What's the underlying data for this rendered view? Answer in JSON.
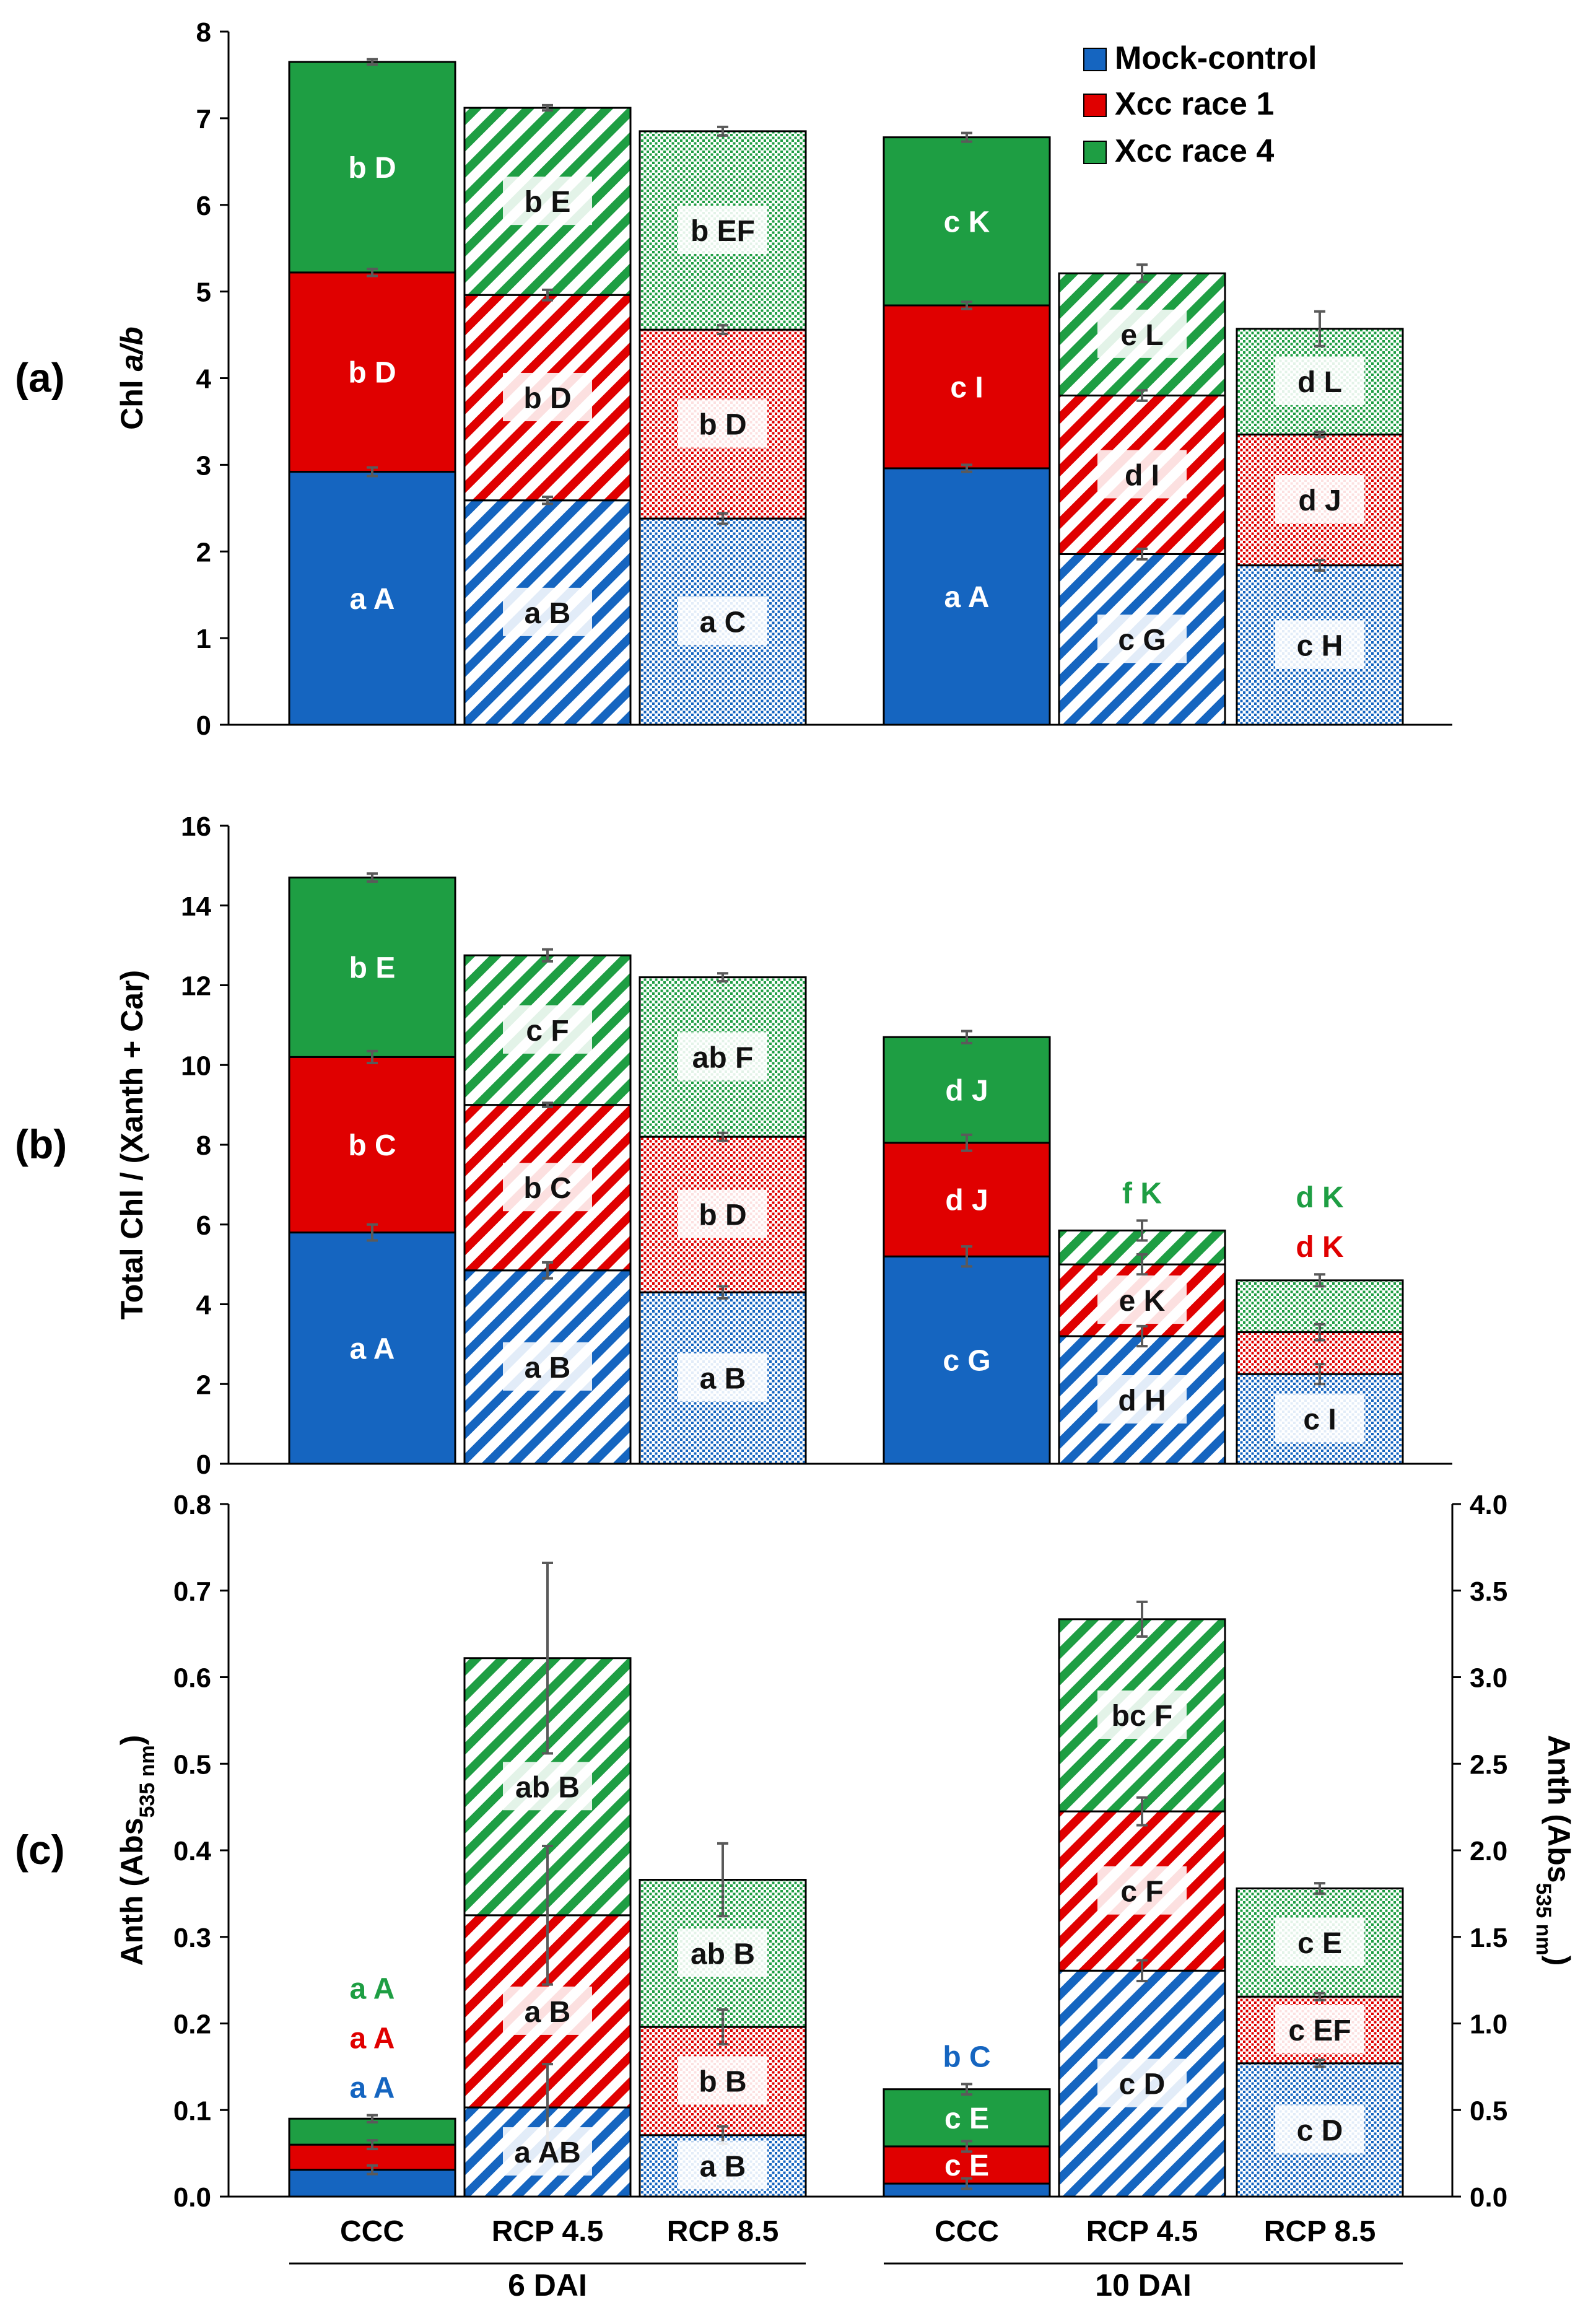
{
  "colors": {
    "mock": "#1565c0",
    "race1": "#e00000",
    "race4": "#1e9e43",
    "axis": "#000000",
    "error": "#5a5a5a"
  },
  "legend": [
    "Mock-control",
    "Xcc race 1",
    "Xcc race 4"
  ],
  "categories": [
    "CCC",
    "RCP 4.5",
    "RCP 8.5",
    "CCC",
    "RCP 4.5",
    "RCP 8.5"
  ],
  "groups": [
    "6 DAI",
    "10 DAI"
  ],
  "chart_data": [
    {
      "type": "bar",
      "stacked": true,
      "panel": "(a)",
      "ylabel_main": "Chl ",
      "ylabel_italic": "a/b",
      "ylim": [
        0,
        8
      ],
      "yticks": [
        "0",
        "1",
        "2",
        "3",
        "4",
        "5",
        "6",
        "7",
        "8"
      ],
      "series": [
        {
          "name": "Mock-control",
          "values": [
            2.92,
            2.59,
            2.38,
            2.96,
            1.97,
            1.84
          ],
          "err": [
            0.05,
            0.04,
            0.06,
            0.04,
            0.06,
            0.06
          ],
          "labels": [
            "a A",
            "a B",
            "a C",
            "a A",
            "c G",
            "c H"
          ]
        },
        {
          "name": "Xcc race 1",
          "values": [
            2.3,
            2.37,
            2.18,
            1.88,
            1.83,
            1.51
          ],
          "err": [
            0.04,
            0.06,
            0.05,
            0.04,
            0.06,
            0.03
          ],
          "labels": [
            "b D",
            "b D",
            "b D",
            "c I",
            "d I",
            "d J"
          ]
        },
        {
          "name": "Xcc race 4",
          "values": [
            2.43,
            2.16,
            2.29,
            1.94,
            1.41,
            1.22
          ],
          "err": [
            0.03,
            0.03,
            0.05,
            0.05,
            0.1,
            0.2
          ],
          "labels": [
            "b D",
            "b E",
            "b EF",
            "c K",
            "e L",
            "d L"
          ]
        }
      ]
    },
    {
      "type": "bar",
      "stacked": true,
      "panel": "(b)",
      "ylabel_main": "Total Chl / (Xanth + Car)",
      "ylim": [
        0,
        16
      ],
      "yticks": [
        "0",
        "2",
        "4",
        "6",
        "8",
        "10",
        "12",
        "14",
        "16"
      ],
      "series": [
        {
          "name": "Mock-control",
          "values": [
            5.8,
            4.85,
            4.3,
            5.2,
            3.2,
            2.25
          ],
          "err": [
            0.2,
            0.2,
            0.15,
            0.25,
            0.25,
            0.25
          ],
          "labels": [
            "a A",
            "a B",
            "a B",
            "c G",
            "d H",
            "c I"
          ]
        },
        {
          "name": "Xcc race 1",
          "values": [
            4.4,
            4.15,
            3.9,
            2.85,
            1.8,
            1.05
          ],
          "err": [
            0.15,
            0.05,
            0.1,
            0.2,
            0.25,
            0.2
          ],
          "labels": [
            "b C",
            "b C",
            "b D",
            "d J",
            "e K",
            ""
          ]
        },
        {
          "name": "Xcc race 4",
          "values": [
            4.5,
            3.75,
            4.0,
            2.65,
            0.85,
            1.3
          ],
          "err": [
            0.1,
            0.15,
            0.1,
            0.15,
            0.25,
            0.15
          ],
          "labels": [
            "b E",
            "c F",
            "ab F",
            "d J",
            "",
            ""
          ]
        }
      ],
      "annotations": [
        {
          "bar": 4,
          "lines": [
            {
              "text": "f K",
              "series": "Xcc race 4"
            }
          ]
        },
        {
          "bar": 5,
          "lines": [
            {
              "text": "d K",
              "series": "Xcc race 4"
            },
            {
              "text": "d K",
              "series": "Xcc race 1"
            }
          ]
        }
      ]
    },
    {
      "type": "bar",
      "stacked": true,
      "panel": "(c)",
      "ylabel_main": "Anth (Abs",
      "ylabel_sub": "535 nm",
      "ylabel_close": ")",
      "ylim": [
        0,
        0.8
      ],
      "yticks": [
        "0.0",
        "0.1",
        "0.2",
        "0.3",
        "0.4",
        "0.5",
        "0.6",
        "0.7",
        "0.8"
      ],
      "ylim_right": [
        0,
        4.0
      ],
      "yticks_right": [
        "0.0",
        "0.5",
        "1.0",
        "1.5",
        "2.0",
        "2.5",
        "3.0",
        "3.5",
        "4.0"
      ],
      "note": "6 DAI bars use left axis; 10 DAI bars use right axis",
      "series": [
        {
          "name": "Mock-control",
          "values": [
            0.031,
            0.103,
            0.071,
            0.075,
            1.305,
            0.77
          ],
          "err": [
            0.005,
            0.05,
            0.01,
            0.03,
            0.06,
            0.02
          ],
          "labels": [
            "",
            "a AB",
            "a B",
            "",
            "c D",
            "c D"
          ]
        },
        {
          "name": "Xcc race 1",
          "values": [
            0.029,
            0.222,
            0.125,
            0.215,
            0.92,
            0.385
          ],
          "err": [
            0.005,
            0.08,
            0.02,
            0.03,
            0.08,
            0.02
          ],
          "labels": [
            "",
            "a B",
            "b B",
            "c E",
            "c F",
            "c EF"
          ]
        },
        {
          "name": "Xcc race 4",
          "values": [
            0.03,
            0.297,
            0.17,
            0.33,
            1.11,
            0.625
          ],
          "err": [
            0.004,
            0.11,
            0.042,
            0.03,
            0.1,
            0.03
          ],
          "labels": [
            "",
            "ab B",
            "ab B",
            "c E",
            "bc F",
            "c E"
          ]
        }
      ],
      "annotations": [
        {
          "bar": 0,
          "lines": [
            {
              "text": "a A",
              "series": "Xcc race 4"
            },
            {
              "text": "a A",
              "series": "Xcc race 1"
            },
            {
              "text": "a A",
              "series": "Mock-control"
            }
          ]
        },
        {
          "bar": 3,
          "lines": [
            {
              "text": "b C",
              "series": "Mock-control"
            }
          ]
        }
      ]
    }
  ]
}
